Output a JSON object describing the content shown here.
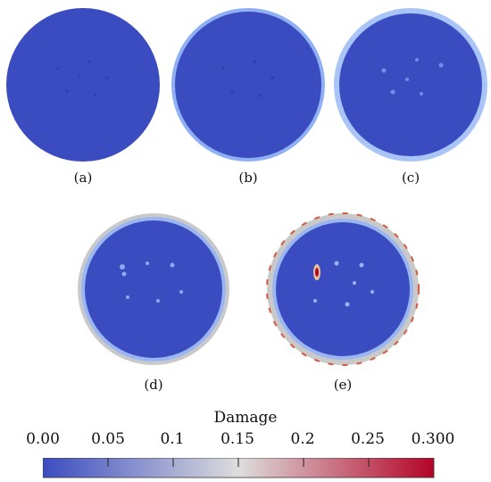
{
  "figure": {
    "panels": [
      {
        "id": "a",
        "label": "(a)"
      },
      {
        "id": "b",
        "label": "(b)"
      },
      {
        "id": "c",
        "label": "(c)"
      },
      {
        "id": "d",
        "label": "(d)"
      },
      {
        "id": "e",
        "label": "(e)"
      }
    ],
    "colorbar": {
      "title": "Damage",
      "ticks": [
        "0.00",
        "0.05",
        "0.1",
        "0.15",
        "0.2",
        "0.25",
        "0.300"
      ],
      "range": [
        0.0,
        0.3
      ],
      "low_color": "#3b4cc0",
      "mid_color": "#dddddd",
      "high_color": "#b40426"
    }
  }
}
